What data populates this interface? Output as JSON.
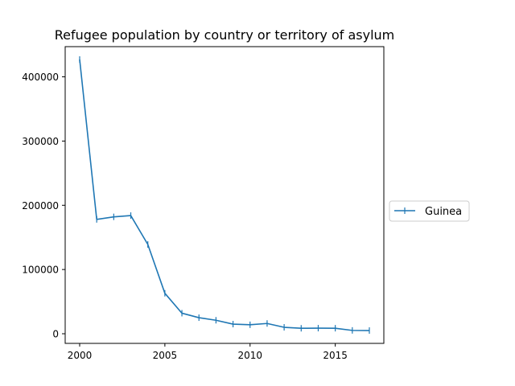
{
  "chart_data": {
    "type": "line",
    "title": "Refugee population by country or territory of asylum",
    "xlabel": "",
    "ylabel": "",
    "x": [
      2000,
      2001,
      2002,
      2003,
      2004,
      2005,
      2006,
      2007,
      2008,
      2009,
      2010,
      2011,
      2012,
      2013,
      2014,
      2015,
      2016,
      2017
    ],
    "series": [
      {
        "name": "Guinea",
        "color": "#1f77b4",
        "marker": "vline",
        "values": [
          427000,
          178000,
          182000,
          184000,
          139000,
          63000,
          32000,
          25000,
          21000,
          15000,
          14000,
          16000,
          10000,
          8500,
          8700,
          8600,
          5200,
          5000
        ]
      }
    ],
    "xlim": [
      1999.15,
      2017.85
    ],
    "ylim": [
      -15000,
      447000
    ],
    "xticks": [
      2000,
      2005,
      2010,
      2015
    ],
    "yticks": [
      0,
      100000,
      200000,
      300000,
      400000
    ],
    "grid": false,
    "legend_position": "center-right"
  }
}
